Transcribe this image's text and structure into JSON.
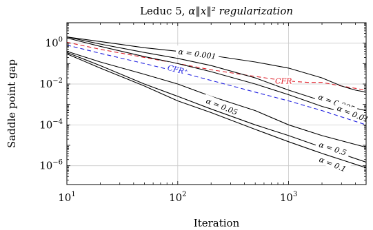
{
  "chart_data": {
    "type": "line",
    "title_prefix": "Leduc 5, ",
    "title_math": "α‖x‖² regularization",
    "xlabel": "Iteration",
    "ylabel": "Saddle point gap",
    "xscale": "log",
    "yscale": "log",
    "xlim": [
      10,
      5000
    ],
    "ylim": [
      1.2e-07,
      10
    ],
    "grid": true,
    "x_ticks": [
      {
        "value": 10,
        "base": "10",
        "exp": "1"
      },
      {
        "value": 100,
        "base": "10",
        "exp": "2"
      },
      {
        "value": 1000,
        "base": "10",
        "exp": "3"
      }
    ],
    "y_ticks": [
      {
        "value": 1,
        "base": "10",
        "exp": "0"
      },
      {
        "value": 0.01,
        "base": "10",
        "exp": "−2"
      },
      {
        "value": 0.0001,
        "base": "10",
        "exp": "−4"
      },
      {
        "value": 1e-06,
        "base": "10",
        "exp": "−6"
      }
    ],
    "series": [
      {
        "name": "CFR",
        "color": "#e0202a",
        "dash": "6,4",
        "points": [
          [
            10,
            1.1
          ],
          [
            20,
            0.5
          ],
          [
            50,
            0.2
          ],
          [
            100,
            0.1
          ],
          [
            200,
            0.05
          ],
          [
            400,
            0.028
          ],
          [
            700,
            0.018
          ],
          [
            1000,
            0.014
          ],
          [
            1500,
            0.012
          ],
          [
            2000,
            0.012
          ],
          [
            3000,
            0.008
          ],
          [
            5000,
            0.005
          ]
        ]
      },
      {
        "name": "CFR⁺",
        "color": "#2020e0",
        "dash": "6,4",
        "points": [
          [
            10,
            0.8
          ],
          [
            20,
            0.32
          ],
          [
            50,
            0.1
          ],
          [
            100,
            0.04
          ],
          [
            200,
            0.015
          ],
          [
            500,
            0.004
          ],
          [
            1000,
            0.0015
          ],
          [
            2000,
            0.0005
          ],
          [
            5000,
            0.0001
          ]
        ]
      },
      {
        "name": "α = 0.001",
        "color": "#000000",
        "dash": "",
        "points": [
          [
            10,
            2.0
          ],
          [
            20,
            1.2
          ],
          [
            50,
            0.6
          ],
          [
            100,
            0.4
          ],
          [
            200,
            0.25
          ],
          [
            500,
            0.12
          ],
          [
            1000,
            0.06
          ],
          [
            2000,
            0.02
          ],
          [
            3000,
            0.008
          ],
          [
            4000,
            0.005
          ],
          [
            5000,
            0.004
          ]
        ]
      },
      {
        "name": "α = 0.005",
        "color": "#000000",
        "dash": "",
        "points": [
          [
            10,
            2.0
          ],
          [
            20,
            0.9
          ],
          [
            50,
            0.35
          ],
          [
            100,
            0.18
          ],
          [
            200,
            0.08
          ],
          [
            500,
            0.02
          ],
          [
            1000,
            0.005
          ],
          [
            2000,
            0.0015
          ],
          [
            5000,
            0.0005
          ]
        ]
      },
      {
        "name": "α = 0.01",
        "color": "#000000",
        "dash": "",
        "points": [
          [
            10,
            1.8
          ],
          [
            20,
            0.7
          ],
          [
            50,
            0.22
          ],
          [
            100,
            0.1
          ],
          [
            200,
            0.04
          ],
          [
            500,
            0.01
          ],
          [
            1000,
            0.003
          ],
          [
            2000,
            0.0008
          ],
          [
            5000,
            0.0002
          ]
        ]
      },
      {
        "name": "α = 0.05",
        "color": "#000000",
        "dash": "",
        "points": [
          [
            10,
            0.4
          ],
          [
            20,
            0.12
          ],
          [
            50,
            0.03
          ],
          [
            100,
            0.01
          ],
          [
            200,
            0.0025
          ],
          [
            500,
            0.0005
          ],
          [
            1000,
            0.0001
          ],
          [
            2000,
            3e-05
          ],
          [
            5000,
            8e-06
          ]
        ]
      },
      {
        "name": "α = 0.5",
        "color": "#000000",
        "dash": "",
        "points": [
          [
            10,
            0.35
          ],
          [
            20,
            0.08
          ],
          [
            50,
            0.01
          ],
          [
            100,
            0.0025
          ],
          [
            200,
            0.0006
          ],
          [
            500,
            0.0001
          ],
          [
            1000,
            3e-05
          ],
          [
            2000,
            8e-06
          ],
          [
            5000,
            1.5e-06
          ]
        ]
      },
      {
        "name": "α = 0.1",
        "color": "#000000",
        "dash": "",
        "points": [
          [
            10,
            0.3
          ],
          [
            20,
            0.06
          ],
          [
            50,
            0.008
          ],
          [
            100,
            0.0015
          ],
          [
            200,
            0.0004
          ],
          [
            500,
            6e-05
          ],
          [
            1000,
            1.5e-05
          ],
          [
            2000,
            4e-06
          ],
          [
            5000,
            8e-07
          ]
        ]
      }
    ],
    "annotations": [
      {
        "text": "α = 0.001",
        "x": 150,
        "y": 0.3,
        "angle": 8,
        "color": "#000000"
      },
      {
        "text": "CFR",
        "x": 900,
        "y": 0.014,
        "angle": 0,
        "color": "#e0202a"
      },
      {
        "text": "CFR⁺",
        "x": 100,
        "y": 0.05,
        "angle": 14,
        "color": "#2020e0"
      },
      {
        "text": "α = 0.005",
        "x": 2700,
        "y": 0.0012,
        "angle": 20,
        "color": "#000000"
      },
      {
        "text": "α = 0.01",
        "x": 3800,
        "y": 0.00035,
        "angle": 22,
        "color": "#000000"
      },
      {
        "text": "α = 0.05",
        "x": 250,
        "y": 0.0008,
        "angle": 22,
        "color": "#000000"
      },
      {
        "text": "α = 0.5",
        "x": 2500,
        "y": 7e-06,
        "angle": 18,
        "color": "#000000"
      },
      {
        "text": "α = 0.1",
        "x": 2500,
        "y": 1.2e-06,
        "angle": 22,
        "color": "#000000"
      }
    ]
  }
}
